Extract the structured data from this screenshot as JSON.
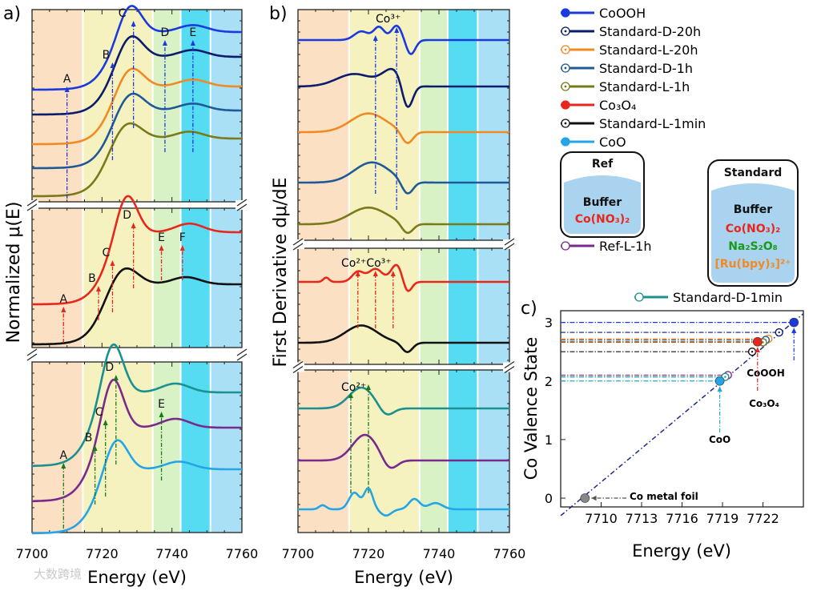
{
  "panel_labels": {
    "a": "a)",
    "b": "b)",
    "c": "c)"
  },
  "axes": {
    "a_xlabel": "Energy (eV)",
    "a_ylabel": "Normalized μ(E)",
    "b_xlabel": "Energy (eV)",
    "b_ylabel": "First Derivative dμ/dE",
    "c_xlabel": "Energy (eV)",
    "c_ylabel": "Co Valence State"
  },
  "ticks": {
    "ab_x": [
      "7700",
      "7720",
      "7740",
      "7760"
    ],
    "c_x": [
      "7710",
      "7713",
      "7716",
      "7719",
      "7722"
    ],
    "c_y": [
      "0",
      "1",
      "2",
      "3"
    ]
  },
  "legend": [
    {
      "label": "CoOOH",
      "color": "#1a3adf",
      "filled": true
    },
    {
      "label": "Standard-D-20h",
      "color": "#0a1c6a",
      "filled": false
    },
    {
      "label": "Standard-L-20h",
      "color": "#f08a24",
      "filled": false
    },
    {
      "label": "Standard-D-1h",
      "color": "#1f5a96",
      "filled": false
    },
    {
      "label": "Standard-L-1h",
      "color": "#7a7a1a",
      "filled": false
    },
    {
      "label": "Co₃O₄",
      "color": "#e8271c",
      "filled": true
    },
    {
      "label": "Standard-L-1min",
      "color": "#111111",
      "filled": false
    },
    {
      "label": "CoO",
      "color": "#24a6e6",
      "filled": true
    }
  ],
  "legend_extra": [
    {
      "label": "Ref-L-1h",
      "color": "#7a2a8c"
    },
    {
      "label": "Standard-D-1min",
      "color": "#1a9090"
    }
  ],
  "boxes": {
    "ref": {
      "title": "Ref",
      "buffer": "Buffer",
      "line1": "Co(NO₃)₂"
    },
    "standard": {
      "title": "Standard",
      "buffer": "Buffer",
      "line1": "Co(NO₃)₂",
      "line2": "Na₂S₂O₈",
      "line3": "[Ru(bpy)₃]²⁺"
    }
  },
  "peak_labels": {
    "a_top": [
      "A",
      "B",
      "C",
      "D",
      "E"
    ],
    "a_mid": [
      "A",
      "B",
      "C",
      "D",
      "E",
      "F"
    ],
    "a_bot": [
      "A",
      "B",
      "C",
      "D",
      "E"
    ],
    "b_top": "Co³⁺",
    "b_mid": "Co²⁺Co³⁺",
    "b_bot": "Co²⁺"
  },
  "c_annotations": {
    "cooh": "CoOOH",
    "co3o4": "Co₃O₄",
    "coo": "CoO",
    "foil": "Co metal foil"
  },
  "watermark": "大数跨境",
  "chart_data": {
    "type": "scatter",
    "title": "",
    "xlabel": "Energy (eV)",
    "ylabel": "Co Valence State",
    "xlim": [
      7707,
      7725
    ],
    "ylim": [
      -0.15,
      3.2
    ],
    "fit_line": {
      "x": [
        7707,
        7725
      ],
      "y": [
        -0.3,
        3.15
      ]
    },
    "references": [
      {
        "name": "Co metal foil",
        "x": 7708.8,
        "y": 0
      },
      {
        "name": "CoO",
        "x": 7718.8,
        "y": 2.0
      },
      {
        "name": "Co3O4",
        "x": 7721.6,
        "y": 2.67
      },
      {
        "name": "CoOOH",
        "x": 7724.3,
        "y": 3.0
      }
    ],
    "samples": [
      {
        "name": "Standard-D-20h",
        "x": 7723.2,
        "y": 2.83
      },
      {
        "name": "Standard-L-20h",
        "x": 7722.4,
        "y": 2.72
      },
      {
        "name": "Standard-D-1h",
        "x": 7722.2,
        "y": 2.7
      },
      {
        "name": "Standard-L-1h",
        "x": 7722.0,
        "y": 2.66
      },
      {
        "name": "Standard-L-1min",
        "x": 7721.2,
        "y": 2.5
      },
      {
        "name": "Ref-L-1h",
        "x": 7719.4,
        "y": 2.1
      },
      {
        "name": "Standard-D-1min",
        "x": 7719.2,
        "y": 2.07
      }
    ]
  }
}
